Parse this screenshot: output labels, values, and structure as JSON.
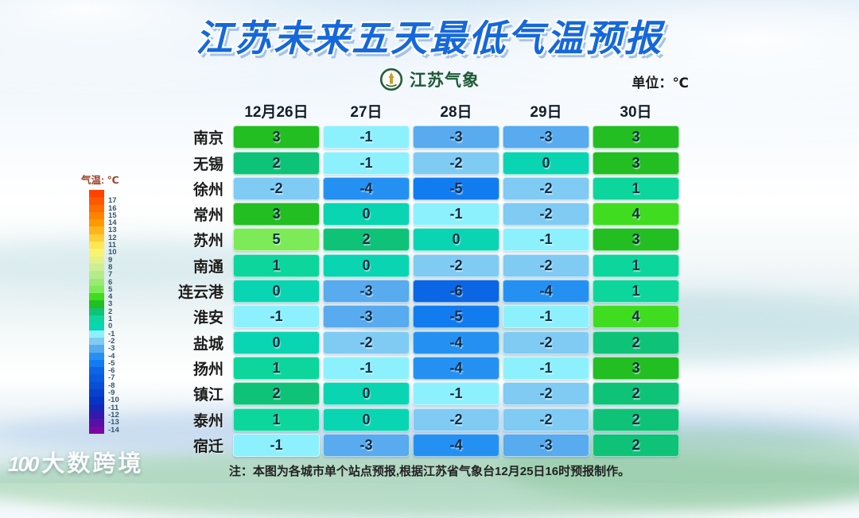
{
  "title": "江苏未来五天最低气温预报",
  "logo": {
    "text": "江苏气象"
  },
  "unit_label": "单位：℃",
  "legend": {
    "title": "气温: ℃",
    "entries": [
      {
        "label": "",
        "color": "#FF4200"
      },
      {
        "label": "17",
        "color": "#FF5800"
      },
      {
        "label": "16",
        "color": "#FF6D00"
      },
      {
        "label": "15",
        "color": "#FF8300"
      },
      {
        "label": "14",
        "color": "#FF9900"
      },
      {
        "label": "13",
        "color": "#FFB41C"
      },
      {
        "label": "12",
        "color": "#FFCE38"
      },
      {
        "label": "11",
        "color": "#FFE854"
      },
      {
        "label": "10",
        "color": "#F7F472"
      },
      {
        "label": "9",
        "color": "#E3F287"
      },
      {
        "label": "8",
        "color": "#CCEF92"
      },
      {
        "label": "7",
        "color": "#B4EC89"
      },
      {
        "label": "6",
        "color": "#99E975"
      },
      {
        "label": "5",
        "color": "#7DEB57"
      },
      {
        "label": "4",
        "color": "#3FDC20"
      },
      {
        "label": "3",
        "color": "#22BE22"
      },
      {
        "label": "2",
        "color": "#0EC377"
      },
      {
        "label": "1",
        "color": "#0CD69C"
      },
      {
        "label": "0",
        "color": "#0AD5B2"
      },
      {
        "label": "-1",
        "color": "#8DF0FD"
      },
      {
        "label": "-2",
        "color": "#7FCBF3"
      },
      {
        "label": "-3",
        "color": "#57ABEE"
      },
      {
        "label": "-4",
        "color": "#2491F2"
      },
      {
        "label": "-5",
        "color": "#117CF0"
      },
      {
        "label": "-6",
        "color": "#0A66E4"
      },
      {
        "label": "-7",
        "color": "#095BDE"
      },
      {
        "label": "-8",
        "color": "#084ED6"
      },
      {
        "label": "-9",
        "color": "#0741CD"
      },
      {
        "label": "-10",
        "color": "#0634C4"
      },
      {
        "label": "-11",
        "color": "#1427B8"
      },
      {
        "label": "-12",
        "color": "#3319AE"
      },
      {
        "label": "-13",
        "color": "#5710A6"
      },
      {
        "label": "-14",
        "color": "#7A07A3"
      }
    ]
  },
  "temp_colors": {
    "5": "#7DEB57",
    "4": "#3FDC20",
    "3": "#22BE22",
    "2": "#0EC377",
    "1": "#0CD69C",
    "0": "#0AD5B2",
    "-1": "#8DF0FD",
    "-2": "#7FCBF3",
    "-3": "#57ABEE",
    "-4": "#2491F2",
    "-5": "#117CF0",
    "-6": "#0A66E4"
  },
  "chart_data": {
    "type": "heatmap",
    "title": "江苏未来五天最低气温预报",
    "unit": "℃",
    "columns": [
      "12月26日",
      "27日",
      "28日",
      "29日",
      "30日"
    ],
    "rows": [
      "南京",
      "无锡",
      "徐州",
      "常州",
      "苏州",
      "南通",
      "连云港",
      "淮安",
      "盐城",
      "扬州",
      "镇江",
      "泰州",
      "宿迁"
    ],
    "values": [
      [
        3,
        -1,
        -3,
        -3,
        3
      ],
      [
        2,
        -1,
        -2,
        0,
        3
      ],
      [
        -2,
        -4,
        -5,
        -2,
        1
      ],
      [
        3,
        0,
        -1,
        -2,
        4
      ],
      [
        5,
        2,
        0,
        -1,
        3
      ],
      [
        1,
        0,
        -2,
        -2,
        1
      ],
      [
        0,
        -3,
        -6,
        -4,
        1
      ],
      [
        -1,
        -3,
        -5,
        -1,
        4
      ],
      [
        0,
        -2,
        -4,
        -2,
        2
      ],
      [
        1,
        -1,
        -4,
        -1,
        3
      ],
      [
        2,
        0,
        -1,
        -2,
        2
      ],
      [
        1,
        0,
        -2,
        -2,
        2
      ],
      [
        -1,
        -3,
        -4,
        -3,
        2
      ]
    ],
    "colorbar": {
      "label": "气温: ℃",
      "tick_max": 17,
      "tick_min": -14
    },
    "legend_position": "left"
  },
  "note": "注：本图为各城市单个站点预报,根据江苏省气象台12月25日16时预报制作。",
  "watermark": {
    "mark": "100",
    "brand": "大数跨境"
  }
}
